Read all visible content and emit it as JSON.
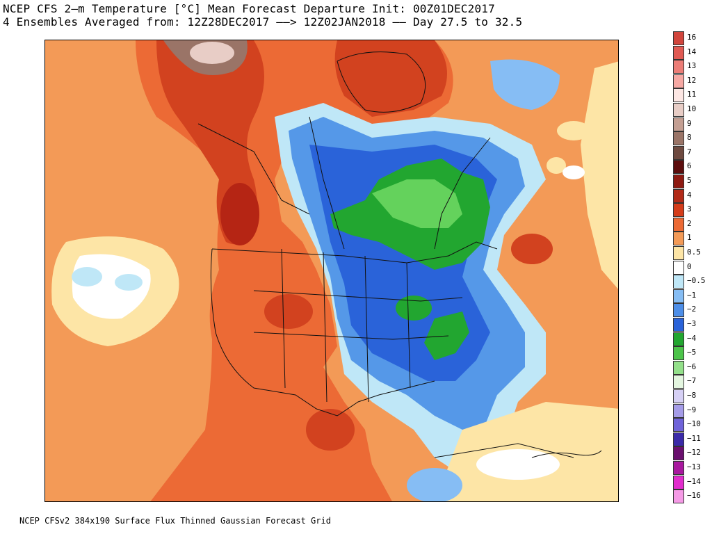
{
  "title": {
    "line1": "NCEP CFS 2–m Temperature [°C] Mean Forecast Departure Init: 00Z01DEC2017",
    "line2": "4 Ensembles Averaged from: 12Z28DEC2017 ––> 12Z02JAN2018 –– Day 27.5 to 32.5"
  },
  "footer": "NCEP CFSv2 384x190 Surface Flux Thinned Gaussian Forecast Grid",
  "colors": {
    "ocean_warm": "#f39a57",
    "land_warm": "#ec6a35",
    "hot": "#d2421f",
    "hottest": "#b52514",
    "arctic_max": "#6b4a44",
    "neutral": "#ffffff",
    "cool": "#5598e8",
    "cold": "#2a63d9",
    "colder": "#22a630",
    "coldest": "#64d25c"
  },
  "legend": [
    {
      "label": "16",
      "color": "#d1453c"
    },
    {
      "label": "14",
      "color": "#e15a53"
    },
    {
      "label": "13",
      "color": "#ec7d77"
    },
    {
      "label": "12",
      "color": "#f6a8a3"
    },
    {
      "label": "11",
      "color": "#fde7e4"
    },
    {
      "label": "10",
      "color": "#e8cdc6"
    },
    {
      "label": "9",
      "color": "#c49f93"
    },
    {
      "label": "8",
      "color": "#9a7467"
    },
    {
      "label": "7",
      "color": "#6e4a40"
    },
    {
      "label": "6",
      "color": "#5c0d0d"
    },
    {
      "label": "5",
      "color": "#8e1a12"
    },
    {
      "label": "4",
      "color": "#b22a18"
    },
    {
      "label": "3",
      "color": "#d43c1a"
    },
    {
      "label": "2",
      "color": "#ec6a35"
    },
    {
      "label": "1",
      "color": "#f39a57"
    },
    {
      "label": "0.5",
      "color": "#fde5a6"
    },
    {
      "label": "0",
      "color": "#ffffff"
    },
    {
      "label": "−0.5",
      "color": "#bfe7f7"
    },
    {
      "label": "−1",
      "color": "#86bdf4"
    },
    {
      "label": "−2",
      "color": "#4d8ee8"
    },
    {
      "label": "−3",
      "color": "#2a63d9"
    },
    {
      "label": "−4",
      "color": "#22a630"
    },
    {
      "label": "−5",
      "color": "#4cc44a"
    },
    {
      "label": "−6",
      "color": "#93e08a"
    },
    {
      "label": "−7",
      "color": "#e4f6e0"
    },
    {
      "label": "−8",
      "color": "#d6d0f5"
    },
    {
      "label": "−9",
      "color": "#a59ce8"
    },
    {
      "label": "−10",
      "color": "#6f63d9"
    },
    {
      "label": "−11",
      "color": "#3a2aa8"
    },
    {
      "label": "−12",
      "color": "#6a0f6e"
    },
    {
      "label": "−13",
      "color": "#a8189e"
    },
    {
      "label": "−14",
      "color": "#e22ccd"
    },
    {
      "label": "−16",
      "color": "#f59ae6"
    }
  ]
}
